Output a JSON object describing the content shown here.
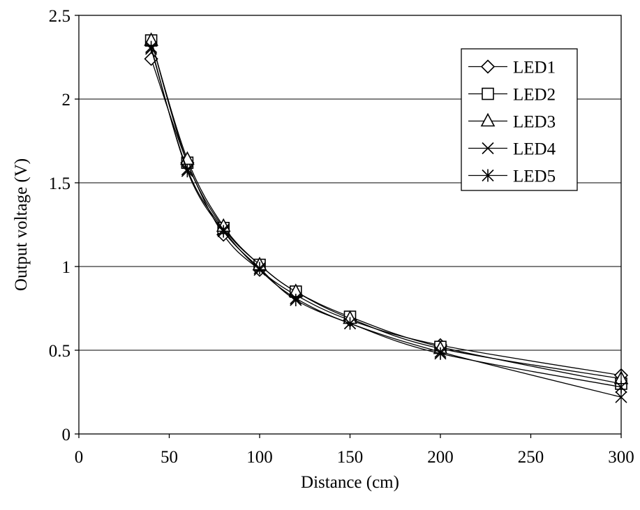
{
  "chart_data": {
    "type": "line",
    "xlabel": "Distance (cm)",
    "ylabel": "Output voltage (V)",
    "xlim": [
      0,
      300
    ],
    "ylim": [
      0,
      2.5
    ],
    "x_ticks": [
      "0",
      "50",
      "100",
      "150",
      "200",
      "250",
      "300"
    ],
    "y_ticks": [
      "0",
      "0.5",
      "1",
      "1.5",
      "2",
      "2.5"
    ],
    "grid": "horizontal",
    "legend_position": "top-right",
    "x": [
      40,
      60,
      80,
      100,
      120,
      150,
      200,
      300
    ],
    "series": [
      {
        "name": "LED1",
        "marker": "diamond",
        "values": [
          2.24,
          1.62,
          1.19,
          0.98,
          0.83,
          0.68,
          0.53,
          0.35
        ]
      },
      {
        "name": "LED2",
        "marker": "square",
        "values": [
          2.35,
          1.62,
          1.23,
          1.01,
          0.85,
          0.7,
          0.52,
          0.3
        ]
      },
      {
        "name": "LED3",
        "marker": "triangle",
        "values": [
          2.35,
          1.64,
          1.24,
          1.01,
          0.85,
          0.69,
          0.51,
          0.33
        ]
      },
      {
        "name": "LED4",
        "marker": "x",
        "values": [
          2.3,
          1.58,
          1.22,
          0.98,
          0.81,
          0.66,
          0.49,
          0.22
        ]
      },
      {
        "name": "LED5",
        "marker": "asterisk",
        "values": [
          2.31,
          1.57,
          1.21,
          0.99,
          0.8,
          0.66,
          0.48,
          0.28
        ]
      }
    ]
  }
}
